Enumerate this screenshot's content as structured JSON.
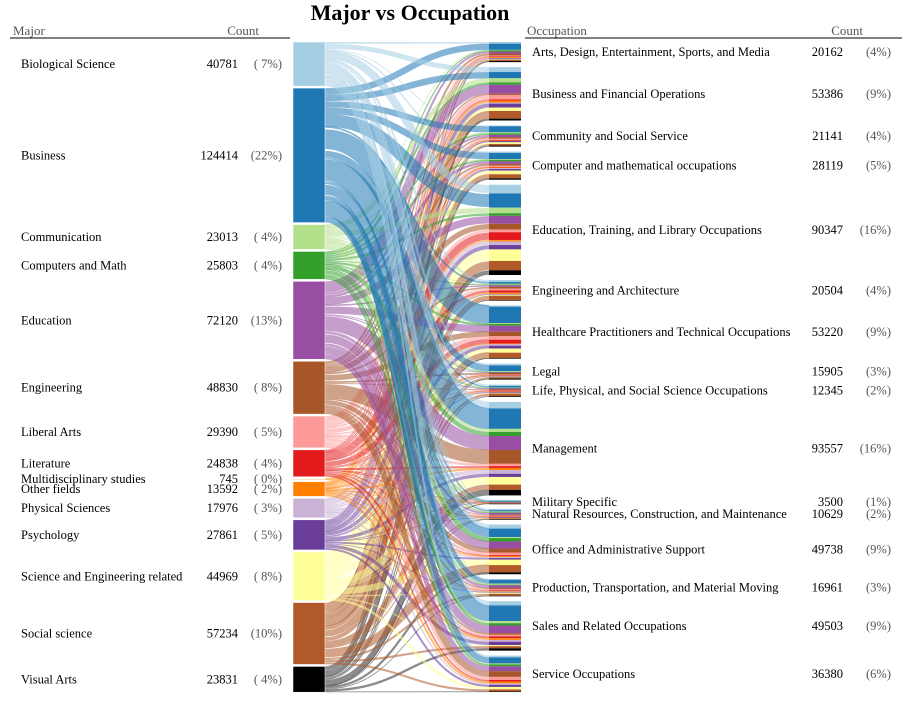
{
  "chart_data": {
    "type": "sankey",
    "title": "Major vs Occupation",
    "left_header": "Major",
    "right_header": "Occupation",
    "count_header": "Count",
    "majors": [
      {
        "name": "Biological Science",
        "count": "40781",
        "pct": "( 7%)",
        "value": 40781,
        "color": "#a6cee3"
      },
      {
        "name": "Business",
        "count": "124414",
        "pct": "(22%)",
        "value": 124414,
        "color": "#1f78b4"
      },
      {
        "name": "Communication",
        "count": "23013",
        "pct": "( 4%)",
        "value": 23013,
        "color": "#b2df8a"
      },
      {
        "name": "Computers and Math",
        "count": "25803",
        "pct": "( 4%)",
        "value": 25803,
        "color": "#33a02c"
      },
      {
        "name": "Education",
        "count": "72120",
        "pct": "(13%)",
        "value": 72120,
        "color": "#984ea3"
      },
      {
        "name": "Engineering",
        "count": "48830",
        "pct": "( 8%)",
        "value": 48830,
        "color": "#a65628"
      },
      {
        "name": "Liberal Arts",
        "count": "29390",
        "pct": "( 5%)",
        "value": 29390,
        "color": "#fb9a99"
      },
      {
        "name": "Literature",
        "count": "24838",
        "pct": "( 4%)",
        "value": 24838,
        "color": "#e31a1c"
      },
      {
        "name": "Multidisciplinary studies",
        "count": "745",
        "pct": "( 0%)",
        "value": 745,
        "color": "#fdbf6f"
      },
      {
        "name": "Other fields",
        "count": "13592",
        "pct": "( 2%)",
        "value": 13592,
        "color": "#ff7f00"
      },
      {
        "name": "Physical Sciences",
        "count": "17976",
        "pct": "( 3%)",
        "value": 17976,
        "color": "#cab2d6"
      },
      {
        "name": "Psychology",
        "count": "27861",
        "pct": "( 5%)",
        "value": 27861,
        "color": "#6a3d9a"
      },
      {
        "name": "Science and Engineering related",
        "count": "44969",
        "pct": "( 8%)",
        "value": 44969,
        "color": "#ffff99"
      },
      {
        "name": "Social science",
        "count": "57234",
        "pct": "(10%)",
        "value": 57234,
        "color": "#b15928"
      },
      {
        "name": "Visual Arts",
        "count": "23831",
        "pct": "( 4%)",
        "value": 23831,
        "color": "#000000"
      }
    ],
    "occupations": [
      {
        "name": "Arts, Design, Entertainment, Sports, and Media",
        "count": "20162",
        "pct": "(4%)",
        "value": 20162
      },
      {
        "name": "Business and Financial Operations",
        "count": "53386",
        "pct": "(9%)",
        "value": 53386
      },
      {
        "name": "Community and Social Service",
        "count": "21141",
        "pct": "(4%)",
        "value": 21141
      },
      {
        "name": "Computer and mathematical occupations",
        "count": "28119",
        "pct": "(5%)",
        "value": 28119
      },
      {
        "name": "Education, Training, and Library Occupations",
        "count": "90347",
        "pct": "(16%)",
        "value": 90347
      },
      {
        "name": "Engineering and Architecture",
        "count": "20504",
        "pct": "(4%)",
        "value": 20504
      },
      {
        "name": "Healthcare Practitioners and Technical Occupations",
        "count": "53220",
        "pct": "(9%)",
        "value": 53220
      },
      {
        "name": "Legal",
        "count": "15905",
        "pct": "(3%)",
        "value": 15905
      },
      {
        "name": "Life, Physical, and Social Science Occupations",
        "count": "12345",
        "pct": "(2%)",
        "value": 12345
      },
      {
        "name": "Management",
        "count": "93557",
        "pct": "(16%)",
        "value": 93557
      },
      {
        "name": "Military Specific",
        "count": "3500",
        "pct": "(1%)",
        "value": 3500
      },
      {
        "name": "Natural Resources, Construction, and Maintenance",
        "count": "10629",
        "pct": "(2%)",
        "value": 10629
      },
      {
        "name": "Office and Administrative Support",
        "count": "49738",
        "pct": "(9%)",
        "value": 49738
      },
      {
        "name": "Production, Transportation, and Material Moving",
        "count": "16961",
        "pct": "(3%)",
        "value": 16961
      },
      {
        "name": "Sales and Related Occupations",
        "count": "49503",
        "pct": "(9%)",
        "value": 49503
      },
      {
        "name": "Service Occupations",
        "count": "36380",
        "pct": "(6%)",
        "value": 36380
      }
    ]
  }
}
